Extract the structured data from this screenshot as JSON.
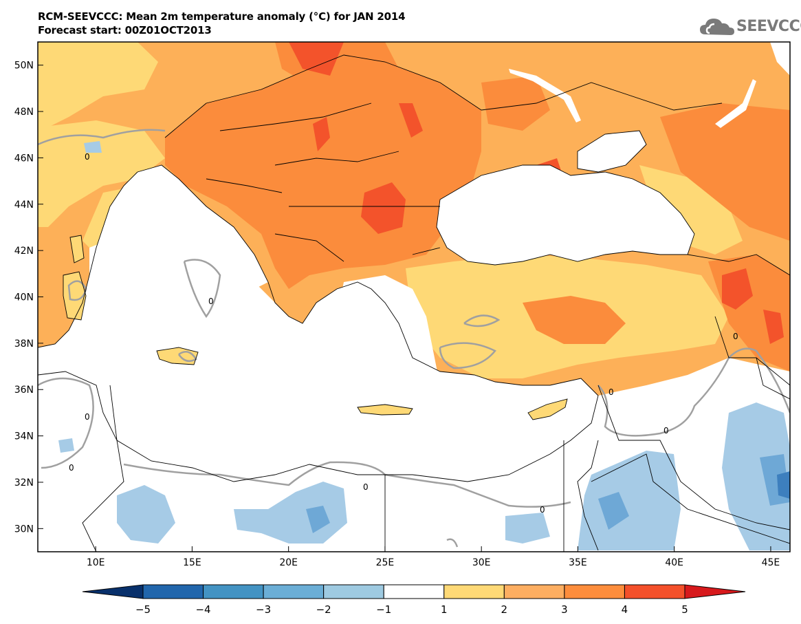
{
  "header": {
    "title": "RCM-SEEVCCC: Mean 2m temperature anomaly (°C) for JAN 2014",
    "subtitle": "Forecast start: 00Z01OCT2013"
  },
  "logo": {
    "text": "SEEVCCC",
    "icon": "cloud-icon"
  },
  "map": {
    "lon_range": [
      7,
      46
    ],
    "lat_range": [
      29,
      51
    ],
    "lon_ticks": [
      {
        "value": 10,
        "label": "10E"
      },
      {
        "value": 15,
        "label": "15E"
      },
      {
        "value": 20,
        "label": "20E"
      },
      {
        "value": 25,
        "label": "25E"
      },
      {
        "value": 30,
        "label": "30E"
      },
      {
        "value": 35,
        "label": "35E"
      },
      {
        "value": 40,
        "label": "40E"
      },
      {
        "value": 45,
        "label": "45E"
      }
    ],
    "lat_ticks": [
      {
        "value": 30,
        "label": "30N"
      },
      {
        "value": 32,
        "label": "32N"
      },
      {
        "value": 34,
        "label": "34N"
      },
      {
        "value": 36,
        "label": "36N"
      },
      {
        "value": 38,
        "label": "38N"
      },
      {
        "value": 40,
        "label": "40N"
      },
      {
        "value": 42,
        "label": "42N"
      },
      {
        "value": 44,
        "label": "44N"
      },
      {
        "value": 46,
        "label": "46N"
      },
      {
        "value": 48,
        "label": "48N"
      },
      {
        "value": 50,
        "label": "50N"
      }
    ],
    "contour_label": "0"
  },
  "colorbar": {
    "levels": [
      "−5",
      "−4",
      "−3",
      "−2",
      "−1",
      "1",
      "2",
      "3",
      "4",
      "5"
    ],
    "colors": [
      "#08306b",
      "#2166ac",
      "#4393c3",
      "#6baed6",
      "#9ecae1",
      "#ffffff",
      "#fed976",
      "#fdae61",
      "#fd8d3c",
      "#f4502a",
      "#d7191c"
    ]
  },
  "colors": {
    "anomaly_1_2": "#fed976",
    "anomaly_2_3": "#fdb058",
    "anomaly_3_4": "#fb8c3c",
    "anomaly_4_5": "#f3532b",
    "anomaly_5_plus": "#d42322",
    "anomaly_m1_m2": "#a6cbe6",
    "anomaly_m2_m3": "#6ea8d6",
    "anomaly_m3_m4": "#3d7fbe",
    "sea": "#ffffff",
    "contour_zero": "#a0a0a0"
  }
}
